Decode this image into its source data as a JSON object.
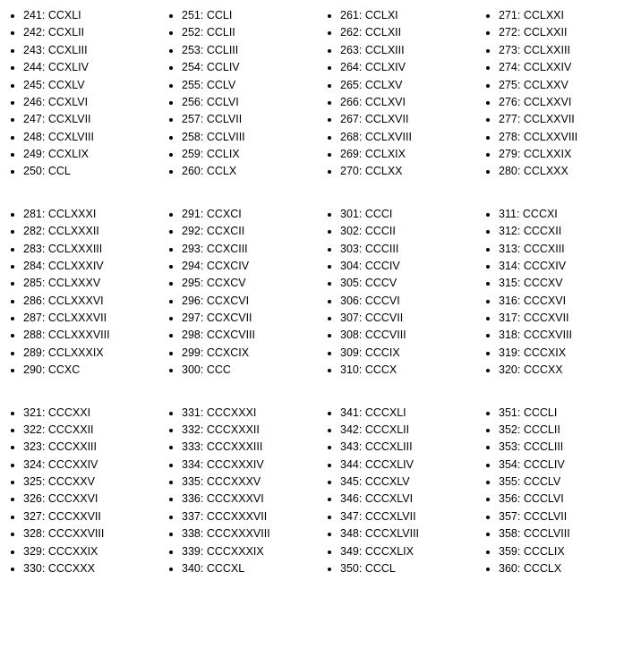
{
  "layout": {
    "rows": 3,
    "cols": 4,
    "items_per_cell": 10,
    "start_number": 241
  },
  "colors": {
    "background": "#ffffff",
    "text": "#000000",
    "bullet": "#000000"
  },
  "typography": {
    "font_family": "Verdana, Geneva, sans-serif",
    "font_size_pt": 9,
    "line_height": 1.55
  },
  "rows": [
    {
      "columns": [
        {
          "items": [
            {
              "num": 241,
              "roman": "CCXLI"
            },
            {
              "num": 242,
              "roman": "CCXLII"
            },
            {
              "num": 243,
              "roman": "CCXLIII"
            },
            {
              "num": 244,
              "roman": "CCXLIV"
            },
            {
              "num": 245,
              "roman": "CCXLV"
            },
            {
              "num": 246,
              "roman": "CCXLVI"
            },
            {
              "num": 247,
              "roman": "CCXLVII"
            },
            {
              "num": 248,
              "roman": "CCXLVIII"
            },
            {
              "num": 249,
              "roman": "CCXLIX"
            },
            {
              "num": 250,
              "roman": "CCL"
            }
          ]
        },
        {
          "items": [
            {
              "num": 251,
              "roman": "CCLI"
            },
            {
              "num": 252,
              "roman": "CCLII"
            },
            {
              "num": 253,
              "roman": "CCLIII"
            },
            {
              "num": 254,
              "roman": "CCLIV"
            },
            {
              "num": 255,
              "roman": "CCLV"
            },
            {
              "num": 256,
              "roman": "CCLVI"
            },
            {
              "num": 257,
              "roman": "CCLVII"
            },
            {
              "num": 258,
              "roman": "CCLVIII"
            },
            {
              "num": 259,
              "roman": "CCLIX"
            },
            {
              "num": 260,
              "roman": "CCLX"
            }
          ]
        },
        {
          "items": [
            {
              "num": 261,
              "roman": "CCLXI"
            },
            {
              "num": 262,
              "roman": "CCLXII"
            },
            {
              "num": 263,
              "roman": "CCLXIII"
            },
            {
              "num": 264,
              "roman": "CCLXIV"
            },
            {
              "num": 265,
              "roman": "CCLXV"
            },
            {
              "num": 266,
              "roman": "CCLXVI"
            },
            {
              "num": 267,
              "roman": "CCLXVII"
            },
            {
              "num": 268,
              "roman": "CCLXVIII"
            },
            {
              "num": 269,
              "roman": "CCLXIX"
            },
            {
              "num": 270,
              "roman": "CCLXX"
            }
          ]
        },
        {
          "items": [
            {
              "num": 271,
              "roman": "CCLXXI"
            },
            {
              "num": 272,
              "roman": "CCLXXII"
            },
            {
              "num": 273,
              "roman": "CCLXXIII"
            },
            {
              "num": 274,
              "roman": "CCLXXIV"
            },
            {
              "num": 275,
              "roman": "CCLXXV"
            },
            {
              "num": 276,
              "roman": "CCLXXVI"
            },
            {
              "num": 277,
              "roman": "CCLXXVII"
            },
            {
              "num": 278,
              "roman": "CCLXXVIII"
            },
            {
              "num": 279,
              "roman": "CCLXXIX"
            },
            {
              "num": 280,
              "roman": "CCLXXX"
            }
          ]
        }
      ]
    },
    {
      "columns": [
        {
          "items": [
            {
              "num": 281,
              "roman": "CCLXXXI"
            },
            {
              "num": 282,
              "roman": "CCLXXXII"
            },
            {
              "num": 283,
              "roman": "CCLXXXIII"
            },
            {
              "num": 284,
              "roman": "CCLXXXIV"
            },
            {
              "num": 285,
              "roman": "CCLXXXV"
            },
            {
              "num": 286,
              "roman": "CCLXXXVI"
            },
            {
              "num": 287,
              "roman": "CCLXXXVII"
            },
            {
              "num": 288,
              "roman": "CCLXXXVIII"
            },
            {
              "num": 289,
              "roman": "CCLXXXIX"
            },
            {
              "num": 290,
              "roman": "CCXC"
            }
          ]
        },
        {
          "items": [
            {
              "num": 291,
              "roman": "CCXCI"
            },
            {
              "num": 292,
              "roman": "CCXCII"
            },
            {
              "num": 293,
              "roman": "CCXCIII"
            },
            {
              "num": 294,
              "roman": "CCXCIV"
            },
            {
              "num": 295,
              "roman": "CCXCV"
            },
            {
              "num": 296,
              "roman": "CCXCVI"
            },
            {
              "num": 297,
              "roman": "CCXCVII"
            },
            {
              "num": 298,
              "roman": "CCXCVIII"
            },
            {
              "num": 299,
              "roman": "CCXCIX"
            },
            {
              "num": 300,
              "roman": "CCC"
            }
          ]
        },
        {
          "items": [
            {
              "num": 301,
              "roman": "CCCI"
            },
            {
              "num": 302,
              "roman": "CCCII"
            },
            {
              "num": 303,
              "roman": "CCCIII"
            },
            {
              "num": 304,
              "roman": "CCCIV"
            },
            {
              "num": 305,
              "roman": "CCCV"
            },
            {
              "num": 306,
              "roman": "CCCVI"
            },
            {
              "num": 307,
              "roman": "CCCVII"
            },
            {
              "num": 308,
              "roman": "CCCVIII"
            },
            {
              "num": 309,
              "roman": "CCCIX"
            },
            {
              "num": 310,
              "roman": "CCCX"
            }
          ]
        },
        {
          "items": [
            {
              "num": 311,
              "roman": "CCCXI"
            },
            {
              "num": 312,
              "roman": "CCCXII"
            },
            {
              "num": 313,
              "roman": "CCCXIII"
            },
            {
              "num": 314,
              "roman": "CCCXIV"
            },
            {
              "num": 315,
              "roman": "CCCXV"
            },
            {
              "num": 316,
              "roman": "CCCXVI"
            },
            {
              "num": 317,
              "roman": "CCCXVII"
            },
            {
              "num": 318,
              "roman": "CCCXVIII"
            },
            {
              "num": 319,
              "roman": "CCCXIX"
            },
            {
              "num": 320,
              "roman": "CCCXX"
            }
          ]
        }
      ]
    },
    {
      "columns": [
        {
          "items": [
            {
              "num": 321,
              "roman": "CCCXXI"
            },
            {
              "num": 322,
              "roman": "CCCXXII"
            },
            {
              "num": 323,
              "roman": "CCCXXIII"
            },
            {
              "num": 324,
              "roman": "CCCXXIV"
            },
            {
              "num": 325,
              "roman": "CCCXXV"
            },
            {
              "num": 326,
              "roman": "CCCXXVI"
            },
            {
              "num": 327,
              "roman": "CCCXXVII"
            },
            {
              "num": 328,
              "roman": "CCCXXVIII"
            },
            {
              "num": 329,
              "roman": "CCCXXIX"
            },
            {
              "num": 330,
              "roman": "CCCXXX"
            }
          ]
        },
        {
          "items": [
            {
              "num": 331,
              "roman": "CCCXXXI"
            },
            {
              "num": 332,
              "roman": "CCCXXXII"
            },
            {
              "num": 333,
              "roman": "CCCXXXIII"
            },
            {
              "num": 334,
              "roman": "CCCXXXIV"
            },
            {
              "num": 335,
              "roman": "CCCXXXV"
            },
            {
              "num": 336,
              "roman": "CCCXXXVI"
            },
            {
              "num": 337,
              "roman": "CCCXXXVII"
            },
            {
              "num": 338,
              "roman": "CCCXXXVIII"
            },
            {
              "num": 339,
              "roman": "CCCXXXIX"
            },
            {
              "num": 340,
              "roman": "CCCXL"
            }
          ]
        },
        {
          "items": [
            {
              "num": 341,
              "roman": "CCCXLI"
            },
            {
              "num": 342,
              "roman": "CCCXLII"
            },
            {
              "num": 343,
              "roman": "CCCXLIII"
            },
            {
              "num": 344,
              "roman": "CCCXLIV"
            },
            {
              "num": 345,
              "roman": "CCCXLV"
            },
            {
              "num": 346,
              "roman": "CCCXLVI"
            },
            {
              "num": 347,
              "roman": "CCCXLVII"
            },
            {
              "num": 348,
              "roman": "CCCXLVIII"
            },
            {
              "num": 349,
              "roman": "CCCXLIX"
            },
            {
              "num": 350,
              "roman": "CCCL"
            }
          ]
        },
        {
          "items": [
            {
              "num": 351,
              "roman": "CCCLI"
            },
            {
              "num": 352,
              "roman": "CCCLII"
            },
            {
              "num": 353,
              "roman": "CCCLIII"
            },
            {
              "num": 354,
              "roman": "CCCLIV"
            },
            {
              "num": 355,
              "roman": "CCCLV"
            },
            {
              "num": 356,
              "roman": "CCCLVI"
            },
            {
              "num": 357,
              "roman": "CCCLVII"
            },
            {
              "num": 358,
              "roman": "CCCLVIII"
            },
            {
              "num": 359,
              "roman": "CCCLIX"
            },
            {
              "num": 360,
              "roman": "CCCLX"
            }
          ]
        }
      ]
    }
  ]
}
